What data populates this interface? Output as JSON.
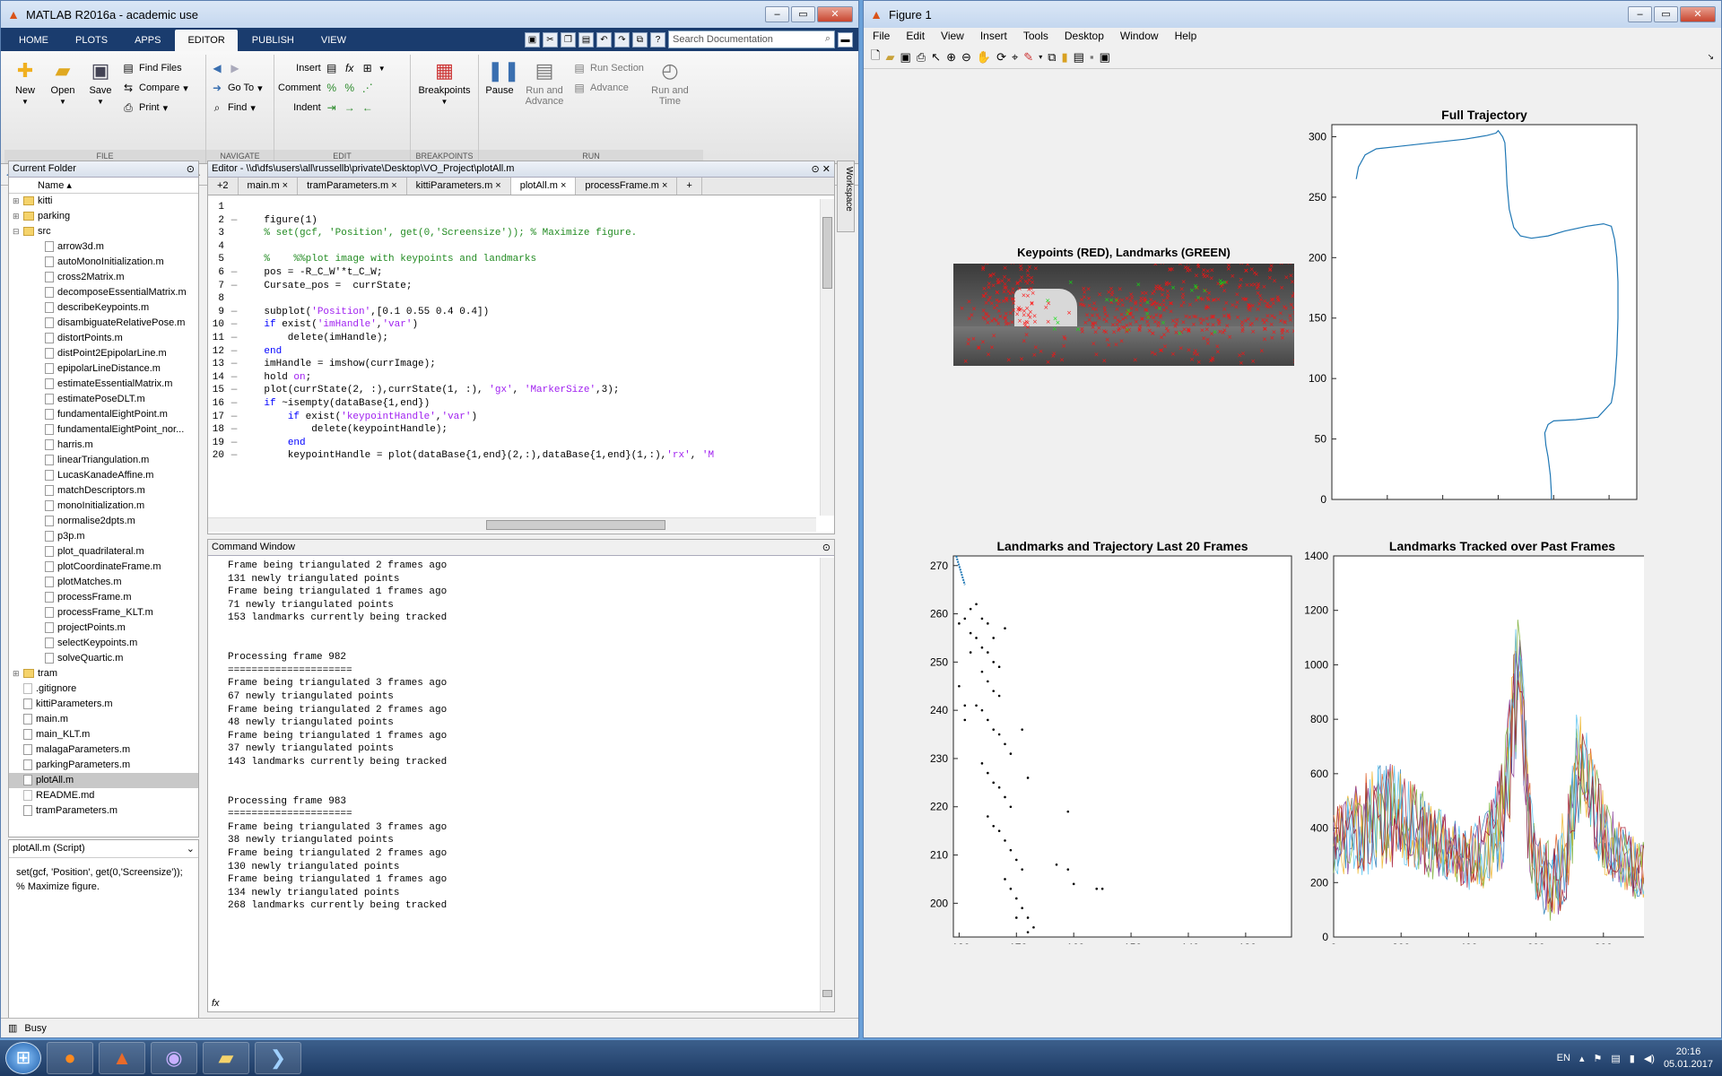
{
  "matlab": {
    "title": "MATLAB R2016a - academic use",
    "tabs": [
      "HOME",
      "PLOTS",
      "APPS",
      "EDITOR",
      "PUBLISH",
      "VIEW"
    ],
    "search_placeholder": "Search Documentation",
    "ribbon": {
      "file": {
        "label": "FILE",
        "new": "New",
        "open": "Open",
        "save": "Save",
        "find_files": "Find Files",
        "compare": "Compare",
        "print": "Print"
      },
      "navigate": {
        "label": "NAVIGATE",
        "go_to": "Go To",
        "find": "Find"
      },
      "edit": {
        "label": "EDIT",
        "insert": "Insert",
        "comment": "Comment",
        "indent": "Indent"
      },
      "breakpoints": {
        "label": "BREAKPOINTS",
        "breakpoints": "Breakpoints"
      },
      "run": {
        "label": "RUN",
        "pause": "Pause",
        "run_and_advance": "Run and Advance",
        "run_section": "Run Section",
        "advance": "Advance",
        "run_and_time": "Run and Time"
      }
    },
    "address": [
      "\\\\d\\dfs",
      "users",
      "all",
      "russellb",
      "private",
      "Desktop",
      "VO_Project"
    ],
    "current_folder": {
      "title": "Current Folder",
      "name_col": "Name",
      "items": [
        {
          "name": "kitti",
          "type": "folder",
          "tree": "+",
          "indent": 0
        },
        {
          "name": "parking",
          "type": "folder",
          "tree": "+",
          "indent": 0
        },
        {
          "name": "src",
          "type": "folder",
          "tree": "−",
          "indent": 0
        },
        {
          "name": "arrow3d.m",
          "type": "m",
          "indent": 1
        },
        {
          "name": "autoMonoInitialization.m",
          "type": "m",
          "indent": 1
        },
        {
          "name": "cross2Matrix.m",
          "type": "m",
          "indent": 1
        },
        {
          "name": "decomposeEssentialMatrix.m",
          "type": "m",
          "indent": 1
        },
        {
          "name": "describeKeypoints.m",
          "type": "m",
          "indent": 1
        },
        {
          "name": "disambiguateRelativePose.m",
          "type": "m",
          "indent": 1
        },
        {
          "name": "distortPoints.m",
          "type": "m",
          "indent": 1
        },
        {
          "name": "distPoint2EpipolarLine.m",
          "type": "m",
          "indent": 1
        },
        {
          "name": "epipolarLineDistance.m",
          "type": "m",
          "indent": 1
        },
        {
          "name": "estimateEssentialMatrix.m",
          "type": "m",
          "indent": 1
        },
        {
          "name": "estimatePoseDLT.m",
          "type": "m",
          "indent": 1
        },
        {
          "name": "fundamentalEightPoint.m",
          "type": "m",
          "indent": 1
        },
        {
          "name": "fundamentalEightPoint_nor...",
          "type": "m",
          "indent": 1
        },
        {
          "name": "harris.m",
          "type": "m",
          "indent": 1
        },
        {
          "name": "linearTriangulation.m",
          "type": "m",
          "indent": 1
        },
        {
          "name": "LucasKanadeAffine.m",
          "type": "m",
          "indent": 1
        },
        {
          "name": "matchDescriptors.m",
          "type": "m",
          "indent": 1
        },
        {
          "name": "monoInitialization.m",
          "type": "m",
          "indent": 1
        },
        {
          "name": "normalise2dpts.m",
          "type": "m",
          "indent": 1
        },
        {
          "name": "p3p.m",
          "type": "m",
          "indent": 1
        },
        {
          "name": "plot_quadrilateral.m",
          "type": "m",
          "indent": 1
        },
        {
          "name": "plotCoordinateFrame.m",
          "type": "m",
          "indent": 1
        },
        {
          "name": "plotMatches.m",
          "type": "m",
          "indent": 1
        },
        {
          "name": "processFrame.m",
          "type": "m",
          "indent": 1
        },
        {
          "name": "processFrame_KLT.m",
          "type": "m",
          "indent": 1
        },
        {
          "name": "projectPoints.m",
          "type": "m",
          "indent": 1
        },
        {
          "name": "selectKeypoints.m",
          "type": "m",
          "indent": 1
        },
        {
          "name": "solveQuartic.m",
          "type": "m",
          "indent": 1
        },
        {
          "name": "tram",
          "type": "folder",
          "tree": "+",
          "indent": 0
        },
        {
          "name": ".gitignore",
          "type": "gen",
          "indent": 0
        },
        {
          "name": "kittiParameters.m",
          "type": "m",
          "indent": 0
        },
        {
          "name": "main.m",
          "type": "m",
          "indent": 0
        },
        {
          "name": "main_KLT.m",
          "type": "m",
          "indent": 0
        },
        {
          "name": "malagaParameters.m",
          "type": "m",
          "indent": 0
        },
        {
          "name": "parkingParameters.m",
          "type": "m",
          "indent": 0
        },
        {
          "name": "plotAll.m",
          "type": "m",
          "indent": 0,
          "selected": true
        },
        {
          "name": "README.md",
          "type": "gen",
          "indent": 0
        },
        {
          "name": "tramParameters.m",
          "type": "m",
          "indent": 0
        }
      ]
    },
    "details": {
      "title": "plotAll.m  (Script)",
      "text": "set(gcf, 'Position', get(0,'Screensize')); % Maximize figure."
    },
    "editor": {
      "title": "Editor - \\\\d\\dfs\\users\\all\\russellb\\private\\Desktop\\VO_Project\\plotAll.m",
      "more_tabs": "+2",
      "tabs": [
        "main.m",
        "tramParameters.m",
        "kittiParameters.m",
        "plotAll.m",
        "processFrame.m"
      ],
      "active_tab": 3,
      "lines": [
        {
          "n": "1",
          "m": "",
          "html": ""
        },
        {
          "n": "2",
          "m": "—",
          "html": "    figure(1)"
        },
        {
          "n": "3",
          "m": "",
          "html": "    <span class='cm'>% set(gcf, 'Position', get(0,'Screensize')); % Maximize figure.</span>"
        },
        {
          "n": "4",
          "m": "",
          "html": ""
        },
        {
          "n": "5",
          "m": "",
          "html": "    <span class='cm'>%    %%plot image with keypoints and landmarks</span>"
        },
        {
          "n": "6",
          "m": "—",
          "html": "    pos = -R_C_W'*t_C_W;"
        },
        {
          "n": "7",
          "m": "—",
          "html": "    Cursate_pos =  currState;"
        },
        {
          "n": "8",
          "m": "",
          "html": ""
        },
        {
          "n": "9",
          "m": "—",
          "html": "    subplot(<span class='st'>'Position'</span>,[0.1 0.55 0.4 0.4])"
        },
        {
          "n": "10",
          "m": "—",
          "html": "    <span class='kw'>if</span> exist(<span class='st'>'imHandle'</span>,<span class='st'>'var'</span>)"
        },
        {
          "n": "11",
          "m": "—",
          "html": "        delete(imHandle);"
        },
        {
          "n": "12",
          "m": "—",
          "html": "    <span class='kw'>end</span>"
        },
        {
          "n": "13",
          "m": "—",
          "html": "    imHandle = imshow(currImage);"
        },
        {
          "n": "14",
          "m": "—",
          "html": "    hold <span class='st'>on</span>;"
        },
        {
          "n": "15",
          "m": "—",
          "html": "    plot(currState(2, :),currState(1, :), <span class='st'>'gx'</span>, <span class='st'>'MarkerSize'</span>,3);"
        },
        {
          "n": "16",
          "m": "—",
          "html": "    <span class='kw'>if</span> ~isempty(dataBase{1,end})"
        },
        {
          "n": "17",
          "m": "—",
          "html": "        <span class='kw'>if</span> exist(<span class='st'>'keypointHandle'</span>,<span class='st'>'var'</span>)"
        },
        {
          "n": "18",
          "m": "—",
          "html": "            delete(keypointHandle);"
        },
        {
          "n": "19",
          "m": "—",
          "html": "        <span class='kw'>end</span>"
        },
        {
          "n": "20",
          "m": "—",
          "html": "        keypointHandle = plot(dataBase{1,end}(2,:),dataBase{1,end}(1,:),<span class='st'>'rx'</span>, <span class='st'>'M</span>"
        }
      ]
    },
    "command_window": {
      "title": "Command Window",
      "lines": [
        "Frame being triangulated 2 frames ago",
        "131 newly triangulated points",
        "Frame being triangulated 1 frames ago",
        "71 newly triangulated points",
        "153 landmarks currently being tracked",
        "",
        "",
        "Processing frame 982",
        "=====================",
        "Frame being triangulated 3 frames ago",
        "67 newly triangulated points",
        "Frame being triangulated 2 frames ago",
        "48 newly triangulated points",
        "Frame being triangulated 1 frames ago",
        "37 newly triangulated points",
        "143 landmarks currently being tracked",
        "",
        "",
        "Processing frame 983",
        "=====================",
        "Frame being triangulated 3 frames ago",
        "38 newly triangulated points",
        "Frame being triangulated 2 frames ago",
        "130 newly triangulated points",
        "Frame being triangulated 1 frames ago",
        "134 newly triangulated points",
        "268 landmarks currently being tracked"
      ],
      "prompt": "fx"
    },
    "workspace_label": "Workspace",
    "status": "Busy"
  },
  "figure": {
    "title": "Figure 1",
    "menus": [
      "File",
      "Edit",
      "View",
      "Insert",
      "Tools",
      "Desktop",
      "Window",
      "Help"
    ]
  },
  "chart_data": [
    {
      "type": "image",
      "title": "Keypoints (RED), Landmarks (GREEN)"
    },
    {
      "type": "line",
      "title": "Full Trajectory",
      "xlim": [
        -200,
        75
      ],
      "ylim": [
        0,
        310
      ],
      "xticks": [
        -150,
        -100,
        -50,
        0,
        50
      ],
      "yticks": [
        0,
        50,
        100,
        150,
        200,
        250,
        300
      ],
      "x": [
        -178,
        -176,
        -170,
        -160,
        -140,
        -110,
        -80,
        -60,
        -52,
        -50,
        -46,
        -44,
        -43,
        -42,
        -40,
        -36,
        -30,
        -20,
        -5,
        10,
        30,
        45,
        52,
        55,
        57,
        58,
        58,
        57,
        55,
        52,
        40,
        20,
        0,
        -5,
        -8,
        -7,
        -5,
        -3,
        -2,
        -2
      ],
      "y": [
        265,
        275,
        285,
        290,
        292,
        295,
        298,
        301,
        303,
        305,
        300,
        295,
        280,
        260,
        240,
        225,
        218,
        216,
        218,
        222,
        226,
        228,
        226,
        215,
        200,
        180,
        150,
        120,
        95,
        80,
        68,
        66,
        65,
        62,
        55,
        45,
        35,
        20,
        5,
        0
      ],
      "color": "#1f77b4"
    },
    {
      "type": "scatter",
      "title": "Landmarks and Trajectory Last 20 Frames",
      "xlim": [
        -181,
        -122
      ],
      "ylim": [
        193,
        272
      ],
      "xticks": [
        -180,
        -170,
        -160,
        -150,
        -140,
        -130
      ],
      "yticks": [
        200,
        210,
        220,
        230,
        240,
        250,
        260,
        270
      ],
      "points": [
        [
          -180,
          258
        ],
        [
          -179,
          259
        ],
        [
          -178,
          261
        ],
        [
          -177,
          262
        ],
        [
          -176,
          259
        ],
        [
          -175,
          258
        ],
        [
          -178,
          256
        ],
        [
          -177,
          255
        ],
        [
          -176,
          253
        ],
        [
          -175,
          252
        ],
        [
          -174,
          250
        ],
        [
          -173,
          249
        ],
        [
          -176,
          248
        ],
        [
          -175,
          246
        ],
        [
          -174,
          244
        ],
        [
          -173,
          243
        ],
        [
          -177,
          241
        ],
        [
          -176,
          240
        ],
        [
          -175,
          238
        ],
        [
          -174,
          236
        ],
        [
          -173,
          235
        ],
        [
          -172,
          233
        ],
        [
          -171,
          231
        ],
        [
          -176,
          229
        ],
        [
          -175,
          227
        ],
        [
          -174,
          225
        ],
        [
          -173,
          224
        ],
        [
          -172,
          222
        ],
        [
          -171,
          220
        ],
        [
          -175,
          218
        ],
        [
          -174,
          216
        ],
        [
          -173,
          215
        ],
        [
          -172,
          213
        ],
        [
          -171,
          211
        ],
        [
          -170,
          209
        ],
        [
          -169,
          207
        ],
        [
          -172,
          205
        ],
        [
          -171,
          203
        ],
        [
          -170,
          201
        ],
        [
          -169,
          199
        ],
        [
          -168,
          197
        ],
        [
          -167,
          195
        ],
        [
          -163,
          208
        ],
        [
          -161,
          207
        ],
        [
          -160,
          204
        ],
        [
          -156,
          203
        ],
        [
          -155,
          203
        ],
        [
          -161,
          219
        ],
        [
          -169,
          236
        ],
        [
          -168,
          226
        ],
        [
          -179,
          241
        ],
        [
          -180,
          245
        ],
        [
          -178,
          252
        ],
        [
          -172,
          257
        ],
        [
          -174,
          255
        ],
        [
          -179,
          238
        ],
        [
          -170,
          197
        ],
        [
          -168,
          194
        ]
      ],
      "traj_x": [
        -180.5,
        -180,
        -179.5,
        -179
      ],
      "traj_y": [
        272,
        270,
        268,
        266
      ],
      "point_color": "#000",
      "traj_color": "#1f77b4"
    },
    {
      "type": "line",
      "title": "Landmarks Tracked over Past Frames",
      "xlim": [
        0,
        1000
      ],
      "ylim": [
        0,
        1400
      ],
      "xticks": [
        0,
        200,
        400,
        600,
        800,
        1000
      ],
      "yticks": [
        0,
        200,
        400,
        600,
        800,
        1000,
        1200,
        1400
      ],
      "series_colors": [
        "#1f77b4",
        "#d95319",
        "#edb120",
        "#7e2f8e",
        "#77ac30",
        "#4dbeee",
        "#a2142f"
      ],
      "envelope": {
        "x": [
          0,
          50,
          100,
          150,
          200,
          250,
          300,
          350,
          400,
          450,
          500,
          520,
          540,
          550,
          560,
          580,
          600,
          650,
          700,
          720,
          740,
          760,
          800,
          850,
          900,
          950,
          1000
        ],
        "mean": [
          350,
          380,
          420,
          450,
          440,
          400,
          350,
          320,
          300,
          320,
          450,
          600,
          900,
          1100,
          800,
          400,
          250,
          200,
          350,
          600,
          700,
          550,
          380,
          300,
          250,
          300,
          280
        ],
        "amp": [
          120,
          150,
          200,
          200,
          180,
          160,
          150,
          120,
          130,
          140,
          200,
          250,
          250,
          150,
          200,
          200,
          150,
          150,
          200,
          250,
          200,
          180,
          150,
          120,
          120,
          140,
          120
        ]
      },
      "seed": 7
    }
  ]
}
